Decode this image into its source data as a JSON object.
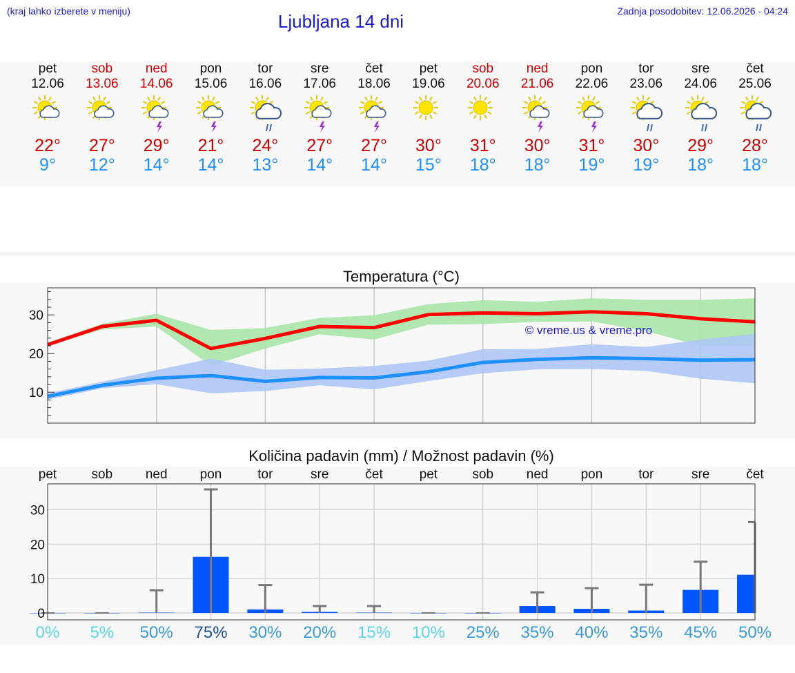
{
  "header": {
    "hint": "(kraj lahko izberete v meniju)",
    "title": "Ljubljana 14 dni",
    "updated": "Zadnja posodobitev: 12.06.2026 - 04:24"
  },
  "colors": {
    "text_link": "#1a1adb",
    "max_temp": "#cc0000",
    "min_temp": "#1e90ff",
    "bar": "#0055ff",
    "max_band": "#a8e6a8",
    "min_band": "#aec6f5"
  },
  "days": [
    {
      "name": "pet",
      "date": "12.06",
      "weekend": false,
      "icon": "sun-cloud-icon",
      "tmax": "22°",
      "tmin": "9°"
    },
    {
      "name": "sob",
      "date": "13.06",
      "weekend": true,
      "icon": "sun-cloud-icon",
      "tmax": "27°",
      "tmin": "12°"
    },
    {
      "name": "ned",
      "date": "14.06",
      "weekend": true,
      "icon": "sun-storm-icon",
      "tmax": "29°",
      "tmin": "14°"
    },
    {
      "name": "pon",
      "date": "15.06",
      "weekend": false,
      "icon": "sun-storm-icon",
      "tmax": "21°",
      "tmin": "14°"
    },
    {
      "name": "tor",
      "date": "16.06",
      "weekend": false,
      "icon": "sun-rain-icon",
      "tmax": "24°",
      "tmin": "13°"
    },
    {
      "name": "sre",
      "date": "17.06",
      "weekend": false,
      "icon": "sun-storm-icon",
      "tmax": "27°",
      "tmin": "14°"
    },
    {
      "name": "čet",
      "date": "18.06",
      "weekend": false,
      "icon": "sun-storm-icon",
      "tmax": "27°",
      "tmin": "14°"
    },
    {
      "name": "pet",
      "date": "19.06",
      "weekend": false,
      "icon": "sun-icon",
      "tmax": "30°",
      "tmin": "15°"
    },
    {
      "name": "sob",
      "date": "20.06",
      "weekend": true,
      "icon": "sun-icon",
      "tmax": "31°",
      "tmin": "18°"
    },
    {
      "name": "ned",
      "date": "21.06",
      "weekend": true,
      "icon": "sun-storm-icon",
      "tmax": "30°",
      "tmin": "18°"
    },
    {
      "name": "pon",
      "date": "22.06",
      "weekend": false,
      "icon": "sun-storm-icon",
      "tmax": "31°",
      "tmin": "19°"
    },
    {
      "name": "tor",
      "date": "23.06",
      "weekend": false,
      "icon": "sun-rain-icon",
      "tmax": "30°",
      "tmin": "19°"
    },
    {
      "name": "sre",
      "date": "24.06",
      "weekend": false,
      "icon": "sun-rain-icon",
      "tmax": "29°",
      "tmin": "18°"
    },
    {
      "name": "čet",
      "date": "25.06",
      "weekend": false,
      "icon": "sun-rain-icon",
      "tmax": "28°",
      "tmin": "18°"
    }
  ],
  "chart_data": [
    {
      "type": "line",
      "title": "Temperatura (°C)",
      "watermark": "© vreme.us & vreme.pro",
      "ylim": [
        2,
        37
      ],
      "yticks": [
        10,
        20,
        30
      ],
      "grid": true,
      "series": [
        {
          "color": "#ff0000",
          "values": [
            22.3,
            27,
            28.6,
            21.3,
            23.9,
            27,
            26.7,
            30.1,
            30.5,
            30.3,
            30.8,
            30.3,
            29,
            28.2
          ],
          "band_low": [
            22,
            26.2,
            27,
            16.8,
            21.3,
            25,
            23.6,
            27.5,
            27.6,
            28.2,
            28.3,
            25.8,
            22,
            22
          ],
          "band_high": [
            22.8,
            27.7,
            30.3,
            26.1,
            26.6,
            29.2,
            29.9,
            32.8,
            33.8,
            33.4,
            34.3,
            33.9,
            33.9,
            34.3
          ]
        },
        {
          "color": "#1e90ff",
          "values": [
            8.9,
            11.8,
            13.6,
            14.3,
            12.8,
            13.8,
            13.7,
            15.3,
            17.7,
            18.5,
            18.9,
            18.7,
            18.3,
            18.4
          ],
          "band_low": [
            8.1,
            11,
            12.1,
            9.7,
            10.3,
            11.8,
            10.7,
            12.9,
            14.9,
            15.9,
            16,
            15.5,
            13.5,
            12.3
          ],
          "band_high": [
            9.7,
            12.7,
            15.7,
            18.7,
            15.8,
            16.1,
            16.8,
            18.2,
            21.1,
            21.2,
            22.4,
            21.7,
            23.6,
            25.1
          ]
        }
      ]
    },
    {
      "type": "bar",
      "title": "Količina padavin (mm) / Možnost padavin (%)",
      "categories": [
        "pet",
        "sob",
        "ned",
        "pon",
        "tor",
        "sre",
        "čet",
        "pet",
        "sob",
        "ned",
        "pon",
        "tor",
        "sre",
        "čet"
      ],
      "values": [
        0,
        0,
        0.1,
        16.3,
        1,
        0.3,
        0.1,
        0,
        0,
        2,
        1.2,
        0.7,
        6.7,
        11.1
      ],
      "error_max": [
        0,
        0,
        6.6,
        35.9,
        8.1,
        2,
        2,
        0,
        0,
        6,
        7.2,
        8.2,
        14.9,
        26.4
      ],
      "ylim": [
        -2,
        37.5
      ],
      "yticks": [
        0,
        10,
        20,
        30
      ],
      "chance_labels": [
        "0%",
        "5%",
        "50%",
        "75%",
        "30%",
        "20%",
        "15%",
        "10%",
        "25%",
        "35%",
        "40%",
        "35%",
        "45%",
        "50%"
      ],
      "chance": [
        0,
        5,
        50,
        75,
        30,
        20,
        15,
        10,
        25,
        35,
        40,
        35,
        45,
        50
      ]
    }
  ]
}
